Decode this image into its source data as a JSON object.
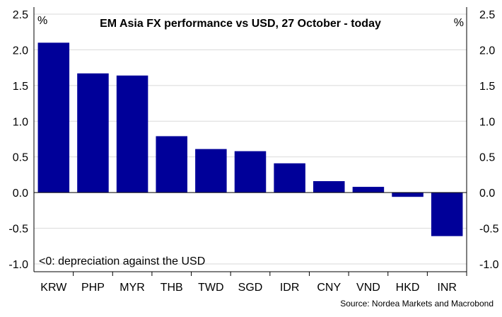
{
  "chart_data": {
    "type": "bar",
    "title": "EM Asia FX performance vs USD, 27 October - today",
    "ylabel_left": "%",
    "ylabel_right": "%",
    "categories": [
      "KRW",
      "PHP",
      "MYR",
      "THB",
      "TWD",
      "SGD",
      "IDR",
      "CNY",
      "VND",
      "HKD",
      "INR"
    ],
    "values": [
      2.1,
      1.67,
      1.64,
      0.79,
      0.61,
      0.58,
      0.41,
      0.16,
      0.08,
      -0.06,
      -0.61
    ],
    "ylim": [
      -1.0,
      2.5
    ],
    "yticks": [
      "2.5",
      "2.0",
      "1.5",
      "1.0",
      "0.5",
      "0.0",
      "-0.5",
      "-1.0"
    ],
    "grid": true,
    "annotation": "<0: depreciation against the USD",
    "source": "Source: Nordea Markets and Macrobond",
    "bar_color": "#000099"
  }
}
